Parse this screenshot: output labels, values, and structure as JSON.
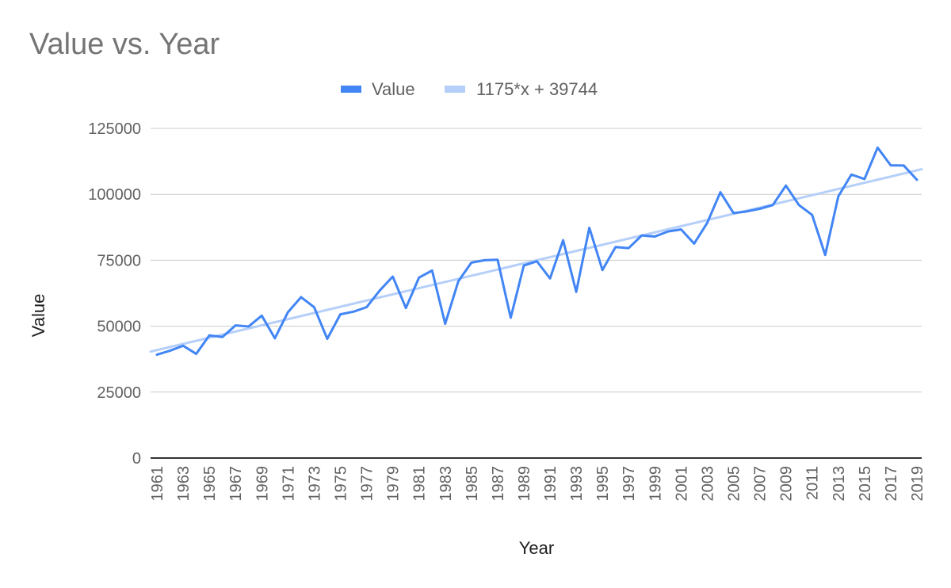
{
  "chart_data": {
    "type": "line",
    "title": "Value vs. Year",
    "xlabel": "Year",
    "ylabel": "Value",
    "ylim": [
      0,
      125000
    ],
    "yticks": [
      "0",
      "25000",
      "50000",
      "75000",
      "100000",
      "125000"
    ],
    "xtick_labels": [
      "1961",
      "1963",
      "1965",
      "1967",
      "1969",
      "1971",
      "1973",
      "1975",
      "1977",
      "1979",
      "1981",
      "1983",
      "1985",
      "1987",
      "1989",
      "1991",
      "1993",
      "1995",
      "1997",
      "1999",
      "2001",
      "2003",
      "2005",
      "2007",
      "2009",
      "2011",
      "2013",
      "2015",
      "2017",
      "2019"
    ],
    "x": [
      1961,
      1962,
      1963,
      1964,
      1965,
      1966,
      1967,
      1968,
      1969,
      1970,
      1971,
      1972,
      1973,
      1974,
      1975,
      1976,
      1977,
      1978,
      1979,
      1980,
      1981,
      1982,
      1983,
      1984,
      1985,
      1986,
      1987,
      1988,
      1989,
      1990,
      1991,
      1992,
      1993,
      1994,
      1995,
      1996,
      1997,
      1998,
      1999,
      2000,
      2001,
      2002,
      2003,
      2004,
      2005,
      2006,
      2007,
      2008,
      2009,
      2010,
      2011,
      2012,
      2013,
      2014,
      2015,
      2016,
      2017,
      2018,
      2019
    ],
    "series": [
      {
        "name": "Value",
        "color": "#4285f4",
        "values": [
          39200,
          40700,
          42600,
          39500,
          46500,
          45900,
          50300,
          49900,
          54000,
          45400,
          55300,
          61000,
          57200,
          45200,
          54500,
          55500,
          57200,
          63500,
          68800,
          56900,
          68400,
          71100,
          50900,
          67000,
          74100,
          75000,
          75200,
          53200,
          73000,
          74600,
          68100,
          82600,
          63000,
          87300,
          71300,
          80000,
          79600,
          84400,
          84000,
          85900,
          86700,
          81300,
          89200,
          100800,
          92900,
          93500,
          94500,
          95900,
          103300,
          95900,
          92200,
          77000,
          99200,
          107500,
          105800,
          117700,
          111000,
          110900,
          105500
        ]
      },
      {
        "name": "1175*x + 39744",
        "color": "#b5cff9",
        "type": "trendline",
        "slope": 1175,
        "intercept": 39744
      }
    ],
    "legend": [
      "Value",
      "1175*x + 39744"
    ],
    "legend_position": "top"
  }
}
